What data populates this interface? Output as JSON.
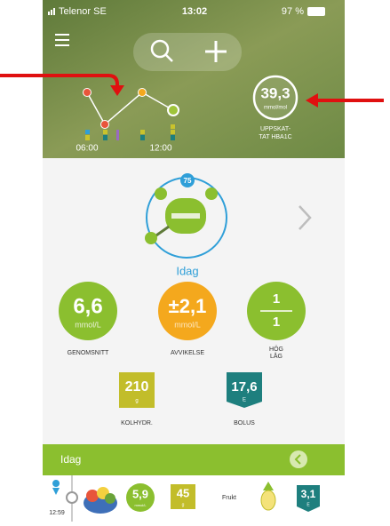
{
  "status_bar": {
    "carrier": "Telenor SE",
    "time": "13:02",
    "battery": "97 %"
  },
  "header": {
    "times": [
      "06:00",
      "12:00"
    ],
    "hba1c": {
      "value": "39,3",
      "unit": "mmol/mol",
      "label_line1": "UPPSKAT-",
      "label_line2": "TAT HBA1C"
    }
  },
  "summary": {
    "badge": "75",
    "day": "Idag",
    "stats": [
      {
        "value": "6,6",
        "unit": "mmol/L",
        "label": "GENOMSNITT"
      },
      {
        "value": "±2,1",
        "unit": "mmol/L",
        "label": "AVVIKELSE"
      },
      {
        "high": "1",
        "low": "1",
        "label_high": "HÖG",
        "label_low": "LÅG"
      }
    ],
    "totals": [
      {
        "value": "210",
        "unit": "g",
        "label": "KOLHYDR."
      },
      {
        "value": "17,6",
        "unit": "E",
        "label": "BOLUS"
      }
    ]
  },
  "log": {
    "title": "Idag",
    "entry": {
      "time": "12:59",
      "glucose": "5,9",
      "glucose_unit": "mmol/L",
      "carbs": "45",
      "carbs_unit": "g",
      "food": "Frukt",
      "insulin": "3,1",
      "insulin_unit": "E"
    }
  }
}
